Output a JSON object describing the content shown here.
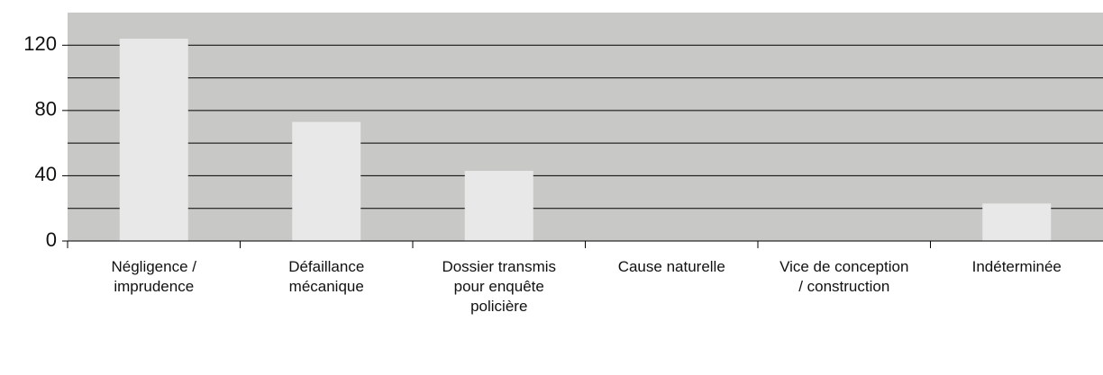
{
  "chart_data": {
    "type": "bar",
    "categories": [
      "Négligence / imprudence",
      "Défaillance mécanique",
      "Dossier transmis pour enquête policière",
      "Cause naturelle",
      "Vice de conception / construction",
      "Indéterminée"
    ],
    "values": [
      124,
      73,
      43,
      0,
      0,
      23
    ],
    "color": "#e8e8e8",
    "background": "#c8c8c6",
    "ylim": [
      0,
      140
    ],
    "yticks": [
      0,
      40,
      80,
      120
    ],
    "minor_yticks": [
      20,
      60,
      100
    ],
    "grid": true
  }
}
